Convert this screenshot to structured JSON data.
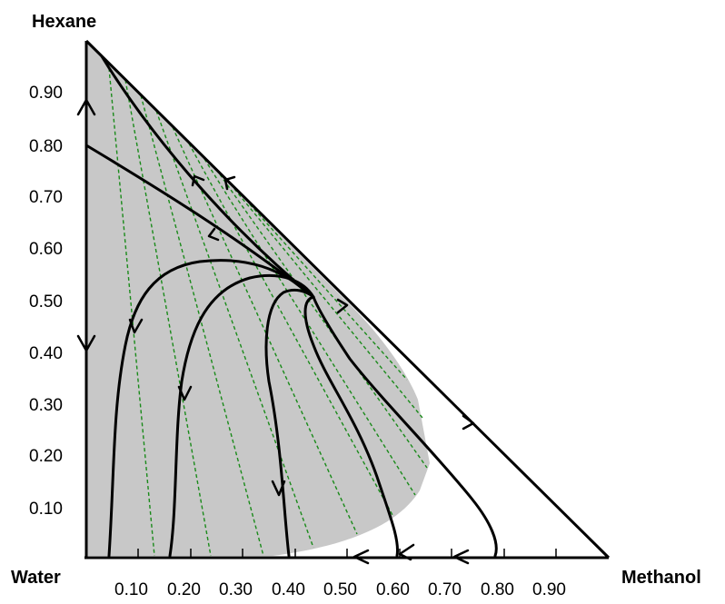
{
  "diagram": {
    "type": "ternary-residue-curve-map",
    "vertices": {
      "top": "Hexane",
      "bottom_left": "Water",
      "bottom_right": "Methanol"
    },
    "axes": {
      "vertical_ticks": [
        "0.90",
        "0.80",
        "0.70",
        "0.60",
        "0.50",
        "0.40",
        "0.30",
        "0.20",
        "0.10"
      ],
      "horizontal_ticks": [
        "0.10",
        "0.20",
        "0.30",
        "0.40",
        "0.50",
        "0.60",
        "0.70",
        "0.80",
        "0.90"
      ]
    },
    "colors": {
      "two_phase_region": "#c8c8c8",
      "tie_lines": "#1a8a1a",
      "curves": "#000000"
    }
  }
}
